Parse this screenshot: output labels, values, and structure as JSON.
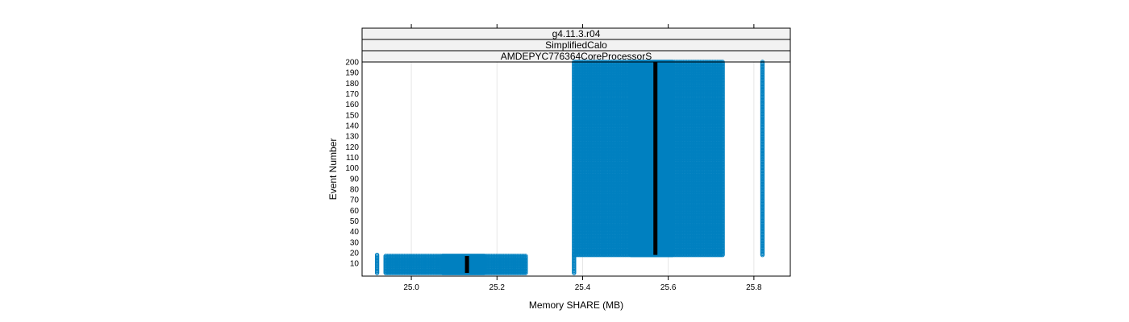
{
  "chart_data": {
    "type": "scatter",
    "title": "",
    "strips": [
      "g4.11.3.r04",
      "SimplifiedCalo",
      "AMDEPYC776364CoreProcessorS"
    ],
    "xlabel": "Memory SHARE (MB)",
    "ylabel": "Event Number",
    "xlim": [
      24.885,
      25.885
    ],
    "ylim": [
      -2,
      200
    ],
    "x_ticks": [
      "25.0",
      "25.2",
      "25.4",
      "25.6",
      "25.8"
    ],
    "y_ticks": [
      "10",
      "20",
      "30",
      "40",
      "50",
      "60",
      "70",
      "80",
      "90",
      "100",
      "110",
      "120",
      "130",
      "140",
      "150",
      "160",
      "170",
      "180",
      "190",
      "200"
    ],
    "grid": true,
    "series": [
      {
        "points": [
          [
            24.92,
            1
          ],
          [
            24.92,
            18
          ]
        ]
      },
      {
        "x_range": [
          24.94,
          25.27
        ],
        "y_range": [
          1,
          17
        ],
        "dense_x_range": [
          25.07,
          25.17
        ]
      },
      {
        "points": [
          [
            25.38,
            1
          ],
          [
            25.38,
            18
          ]
        ]
      },
      {
        "x_range": [
          25.38,
          25.73
        ],
        "y_range": [
          18,
          200
        ],
        "dense_x_range": [
          25.51,
          25.61
        ]
      },
      {
        "points": [
          [
            25.82,
            18
          ],
          [
            25.82,
            200
          ]
        ]
      }
    ],
    "median_lines": [
      {
        "x": 25.13,
        "y_range": [
          1,
          17
        ]
      },
      {
        "x": 25.57,
        "y_range": [
          18,
          200
        ]
      }
    ],
    "colors": {
      "points": "#0080c0",
      "median": "#000000",
      "strip_bg": "#f2f2f2",
      "grid": "#e6e6e6"
    }
  }
}
